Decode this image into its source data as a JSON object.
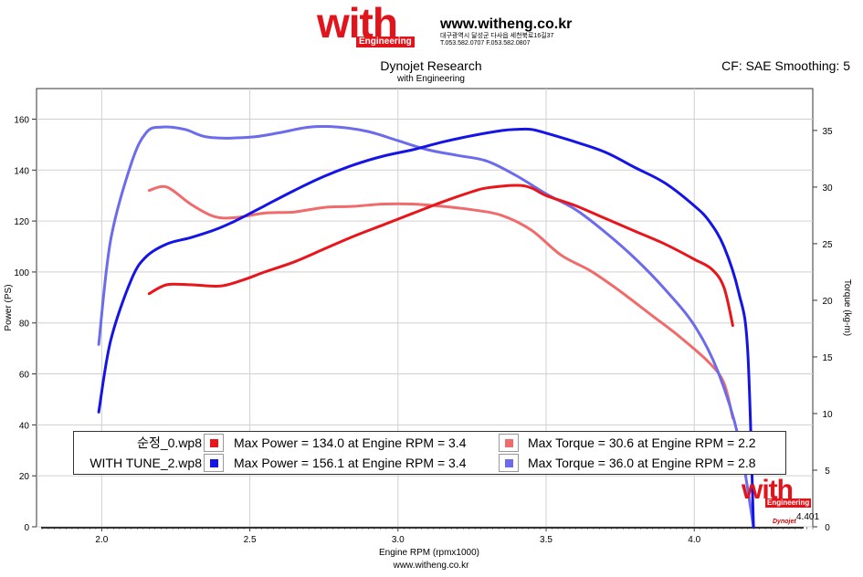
{
  "header": {
    "logo_text": "with",
    "logo_sub": "Engineering",
    "website": "www.witheng.co.kr",
    "address": "대구광역시 달성군 다사읍 세천북로16길37",
    "phone": "T.053.582.0707 F.053.582.0807",
    "title": "Dynojet Research",
    "subtitle": "with Engineering",
    "correction": "CF: SAE Smoothing: 5"
  },
  "footer": {
    "website": "www.witheng.co.kr"
  },
  "watermark": {
    "logo_text": "with",
    "logo_sub": "Engineering",
    "corner_value": "4.401",
    "badge": "Dynojet"
  },
  "colors": {
    "red": "#e8151b",
    "light_red": "#f06b6b",
    "blue": "#1414e6",
    "light_blue": "#6b6bec"
  },
  "legend": {
    "rows": [
      {
        "file": "순정_0.wp8",
        "power": "Max Power = 134.0 at Engine RPM = 3.4",
        "torque": "Max Torque = 30.6 at Engine RPM = 2.2"
      },
      {
        "file": "WITH TUNE_2.wp8",
        "power": "Max Power = 156.1 at Engine RPM = 3.4",
        "torque": "Max Torque = 36.0 at Engine RPM = 2.8"
      }
    ]
  },
  "chart_data": {
    "type": "line",
    "title": "Dynojet Research",
    "subtitle": "with Engineering",
    "xlabel": "Engine RPM (rpmx1000)",
    "ylabel": "Power (PS)",
    "y2label": "Torque (kg-m)",
    "xlim": [
      1.78,
      4.4
    ],
    "ylim": [
      0,
      172
    ],
    "y2lim": [
      0,
      38.7
    ],
    "x_ticks": [
      "2.0",
      "2.5",
      "3.0",
      "3.5",
      "4.0"
    ],
    "y_ticks": [
      "0",
      "20",
      "40",
      "60",
      "80",
      "100",
      "120",
      "140",
      "160"
    ],
    "y2_ticks": [
      "0",
      "5",
      "10",
      "15",
      "20",
      "25",
      "30",
      "35"
    ],
    "series": [
      {
        "name": "순정_0.wp8 Power",
        "axis": "left",
        "color_key": "red",
        "x": [
          2.16,
          2.22,
          2.3,
          2.4,
          2.48,
          2.55,
          2.65,
          2.75,
          2.85,
          2.95,
          3.05,
          3.15,
          3.25,
          3.3,
          3.4,
          3.45,
          3.5,
          3.6,
          3.7,
          3.8,
          3.9,
          4.0,
          4.06,
          4.1,
          4.13
        ],
        "y": [
          91.5,
          95,
          95,
          94.5,
          97,
          100,
          104,
          109,
          114,
          118.5,
          123,
          127.5,
          131.5,
          133,
          134,
          133,
          130,
          126,
          121,
          116,
          111,
          105,
          101,
          94,
          79
        ]
      },
      {
        "name": "WITH TUNE_2.wp8 Power",
        "axis": "left",
        "color_key": "blue",
        "x": [
          1.99,
          2.03,
          2.1,
          2.15,
          2.22,
          2.3,
          2.38,
          2.45,
          2.55,
          2.65,
          2.75,
          2.85,
          2.95,
          3.05,
          3.15,
          3.25,
          3.35,
          3.4,
          3.45,
          3.5,
          3.6,
          3.7,
          3.8,
          3.9,
          4.0,
          4.05,
          4.1,
          4.15,
          4.18,
          4.2
        ],
        "y": [
          45,
          73,
          97,
          106,
          111,
          113.5,
          116.5,
          120,
          126,
          132,
          137.5,
          142,
          145.5,
          148,
          151,
          153.5,
          155.5,
          156,
          156,
          154.5,
          151,
          147,
          141,
          135,
          126,
          120,
          110,
          92,
          70,
          0
        ]
      },
      {
        "name": "순정_0.wp8 Torque",
        "axis": "right",
        "color_key": "light_red",
        "x": [
          2.16,
          2.22,
          2.3,
          2.38,
          2.45,
          2.55,
          2.65,
          2.75,
          2.85,
          2.95,
          3.05,
          3.15,
          3.25,
          3.35,
          3.45,
          3.55,
          3.65,
          3.75,
          3.85,
          3.95,
          4.05,
          4.1,
          4.13
        ],
        "y": [
          29.7,
          30.0,
          28.5,
          27.4,
          27.3,
          27.7,
          27.8,
          28.2,
          28.3,
          28.5,
          28.5,
          28.3,
          28.0,
          27.5,
          26.2,
          24.0,
          22.6,
          20.8,
          18.8,
          16.8,
          14.5,
          12.7,
          9.6
        ]
      },
      {
        "name": "WITH TUNE_2.wp8 Torque",
        "axis": "right",
        "color_key": "light_blue",
        "x": [
          1.99,
          2.03,
          2.1,
          2.15,
          2.2,
          2.28,
          2.36,
          2.5,
          2.6,
          2.7,
          2.8,
          2.9,
          3.0,
          3.1,
          3.2,
          3.3,
          3.4,
          3.5,
          3.6,
          3.7,
          3.8,
          3.9,
          4.0,
          4.08,
          4.15,
          4.2
        ],
        "y": [
          16.1,
          25.3,
          32.1,
          34.8,
          35.3,
          35.1,
          34.4,
          34.4,
          34.8,
          35.3,
          35.3,
          34.9,
          34.1,
          33.3,
          32.8,
          32.3,
          31.0,
          29.4,
          28.0,
          26.0,
          23.7,
          21.0,
          17.8,
          13.7,
          7.8,
          0
        ]
      }
    ]
  }
}
